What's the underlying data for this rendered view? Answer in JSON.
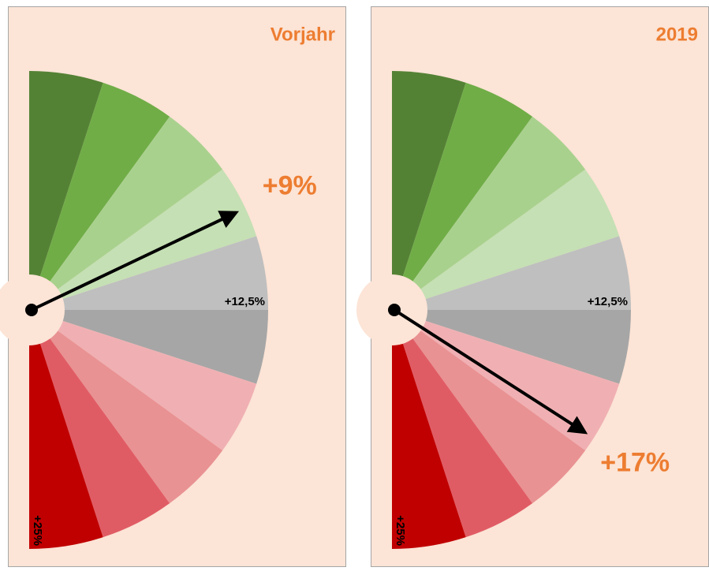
{
  "chart_data": [
    {
      "type": "gauge",
      "title": "Vorjahr",
      "value": 9,
      "value_label": "+9%",
      "ylim": [
        0,
        25
      ],
      "yticks": [
        {
          "value": 12.5,
          "label": "+12,5%"
        },
        {
          "value": 25,
          "label": "+25%"
        }
      ],
      "colors": [
        "#548235",
        "#70ad47",
        "#a9d18e",
        "#c5e0b4",
        "#bfbfbf",
        "#a6a6a6",
        "#f0b0b3",
        "#e99293",
        "#e05c65",
        "#c00000"
      ]
    },
    {
      "type": "gauge",
      "title": "2019",
      "value": 17,
      "value_label": "+17%",
      "ylim": [
        0,
        25
      ],
      "yticks": [
        {
          "value": 12.5,
          "label": "+12,5%"
        },
        {
          "value": 25,
          "label": "+25%"
        }
      ],
      "colors": [
        "#548235",
        "#70ad47",
        "#a9d18e",
        "#c5e0b4",
        "#bfbfbf",
        "#a6a6a6",
        "#f0b0b3",
        "#e99293",
        "#e05c65",
        "#c00000"
      ]
    }
  ]
}
